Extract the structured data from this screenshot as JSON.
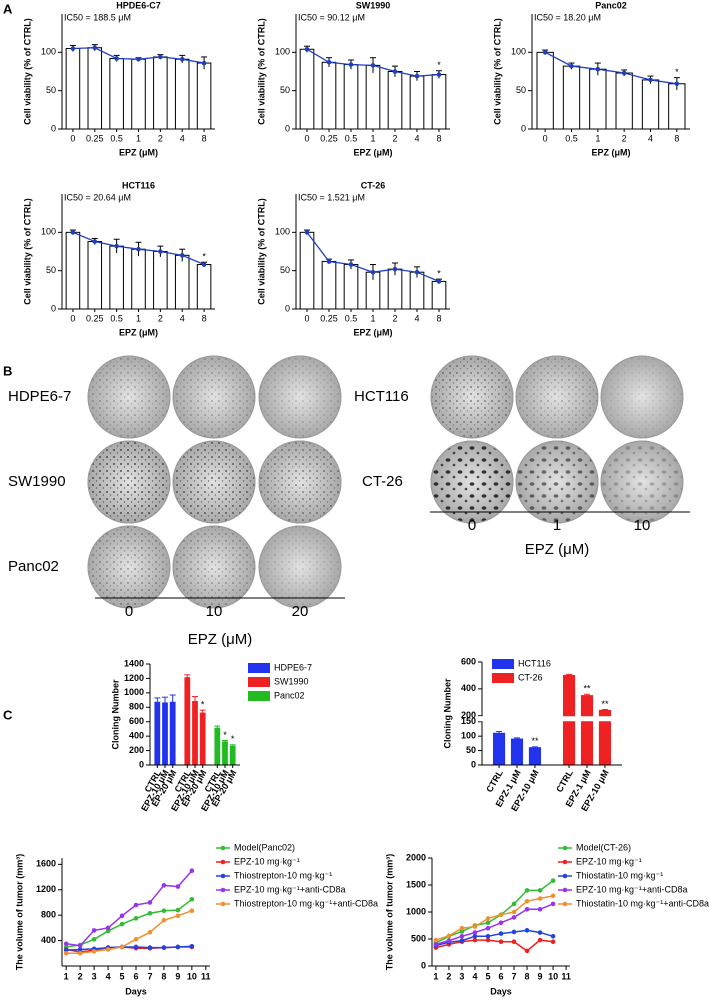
{
  "panel_labels": [
    "A",
    "B",
    "C"
  ],
  "colony_panels": [
    {
      "rows": [
        "HDPE6-7",
        "SW1990",
        "Panc02"
      ],
      "columns": [
        "0",
        "10",
        "20"
      ],
      "x_label": "EPZ (μM)"
    },
    {
      "rows": [
        "HCT116",
        "CT-26"
      ],
      "columns": [
        "0",
        "1",
        "10"
      ],
      "x_label": "EPZ (μM)"
    }
  ],
  "chart_data": [
    {
      "type": "bar",
      "title": "HPDE6-C7",
      "annotation": "IC50 = 188.5 μM",
      "x_label": "EPZ (μM)",
      "y_label": "Cell viability (% of CTRL)",
      "categories": [
        "0",
        "0.25",
        "0.5",
        "1",
        "2",
        "4",
        "8"
      ],
      "values": [
        105,
        106,
        92,
        91,
        94,
        91,
        86
      ],
      "errors": [
        4,
        4,
        4,
        2,
        3,
        5,
        8
      ],
      "significance": [
        null,
        null,
        null,
        null,
        null,
        null,
        null
      ],
      "color": "#ffffff",
      "line_color": "#1f3fbf",
      "ylim": [
        0,
        150
      ],
      "yticks": [
        0,
        50,
        100
      ]
    },
    {
      "type": "bar",
      "title": "SW1990",
      "annotation": "IC50 = 90.12 μM",
      "x_label": "EPZ (μM)",
      "y_label": "Cell viability (% of CTRL)",
      "categories": [
        "0",
        "0.25",
        "0.5",
        "1",
        "2",
        "4",
        "8"
      ],
      "values": [
        104,
        87,
        84,
        83,
        75,
        69,
        71
      ],
      "errors": [
        4,
        6,
        6,
        10,
        7,
        6,
        5
      ],
      "significance": [
        null,
        null,
        null,
        null,
        null,
        null,
        "*"
      ],
      "color": "#ffffff",
      "line_color": "#1f3fbf",
      "ylim": [
        0,
        150
      ],
      "yticks": [
        0,
        50,
        100
      ]
    },
    {
      "type": "bar",
      "title": "Panc02",
      "annotation": "IC50 = 18.20 μM",
      "x_label": "EPZ (μM)",
      "y_label": "Cell viability (% of CTRL)",
      "categories": [
        "0",
        "0.5",
        "1",
        "2",
        "4",
        "8"
      ],
      "values": [
        100,
        82,
        78,
        73,
        64,
        59
      ],
      "errors": [
        3,
        4,
        8,
        4,
        5,
        8
      ],
      "significance": [
        null,
        null,
        null,
        null,
        null,
        "*"
      ],
      "color": "#ffffff",
      "line_color": "#1f3fbf",
      "ylim": [
        0,
        150
      ],
      "yticks": [
        0,
        50,
        100
      ]
    },
    {
      "type": "bar",
      "title": "HCT116",
      "annotation": "IC50 = 20.64 μM",
      "x_label": "EPZ (μM)",
      "y_label": "Cell viability (% of CTRL)",
      "categories": [
        "0",
        "0.25",
        "0.5",
        "1",
        "2",
        "4",
        "8"
      ],
      "values": [
        100,
        88,
        82,
        78,
        75,
        70,
        58
      ],
      "errors": [
        3,
        4,
        9,
        9,
        7,
        8,
        3
      ],
      "significance": [
        null,
        null,
        null,
        null,
        null,
        null,
        "*"
      ],
      "color": "#ffffff",
      "line_color": "#1f3fbf",
      "ylim": [
        0,
        150
      ],
      "yticks": [
        0,
        50,
        100
      ]
    },
    {
      "type": "bar",
      "title": "CT-26",
      "annotation": "IC50 = 1.521 μM",
      "x_label": "EPZ (μM)",
      "y_label": "Cell viability (% of CTRL)",
      "categories": [
        "0",
        "0.25",
        "0.5",
        "1",
        "2",
        "4",
        "8"
      ],
      "values": [
        100,
        62,
        58,
        48,
        52,
        48,
        36
      ],
      "errors": [
        3,
        3,
        6,
        10,
        8,
        7,
        3
      ],
      "significance": [
        null,
        null,
        null,
        null,
        null,
        null,
        "*"
      ],
      "color": "#ffffff",
      "line_color": "#1f3fbf",
      "ylim": [
        0,
        150
      ],
      "yticks": [
        0,
        50,
        100
      ]
    },
    {
      "type": "bar",
      "y_label": "Cloning Number",
      "categories": [
        "CTRL",
        "EPZ-10 μM",
        "EP-20 μM",
        "CTRL",
        "EPZ-10 μM",
        "EP-20 μM",
        "CTRL",
        "EPZ-10 μM",
        "EP-20 μM"
      ],
      "series": [
        {
          "name": "HDPE6-7",
          "color": "#2233ee",
          "values": [
            870,
            860,
            870,
            null,
            null,
            null,
            null,
            null,
            null
          ],
          "errors": [
            60,
            80,
            100,
            null,
            null,
            null,
            null,
            null,
            null
          ],
          "significance": [
            null,
            null,
            null,
            null,
            null,
            null,
            null,
            null,
            null
          ]
        },
        {
          "name": "SW1990",
          "color": "#ee2222",
          "values": [
            null,
            null,
            null,
            1210,
            880,
            720,
            null,
            null,
            null
          ],
          "errors": [
            null,
            null,
            null,
            40,
            70,
            40,
            null,
            null,
            null
          ],
          "significance": [
            null,
            null,
            null,
            null,
            null,
            "*",
            null,
            null,
            null
          ]
        },
        {
          "name": "Panc02",
          "color": "#22bb22",
          "values": [
            null,
            null,
            null,
            null,
            null,
            null,
            510,
            320,
            260
          ],
          "errors": [
            null,
            null,
            null,
            null,
            null,
            null,
            30,
            20,
            20
          ],
          "significance": [
            null,
            null,
            null,
            null,
            null,
            null,
            null,
            "*",
            "*"
          ]
        }
      ],
      "ylim": [
        0,
        1400
      ],
      "yticks": [
        0,
        200,
        400,
        600,
        800,
        1000,
        1200,
        1400
      ]
    },
    {
      "type": "bar",
      "y_label": "Cloning Number",
      "categories": [
        "CTRL",
        "EPZ-1 μM",
        "EPZ-10 μM",
        "CTRL",
        "EPZ-1 μM",
        "EPZ-10 μM"
      ],
      "series": [
        {
          "name": "HCT116",
          "color": "#2233ee",
          "values": [
            110,
            90,
            60,
            null,
            null,
            null
          ],
          "errors": [
            6,
            4,
            3,
            null,
            null,
            null
          ],
          "significance": [
            null,
            null,
            "**",
            null,
            null,
            null
          ]
        },
        {
          "name": "CT-26",
          "color": "#ee2222",
          "values": [
            null,
            null,
            null,
            500,
            350,
            240
          ],
          "errors": [
            null,
            null,
            null,
            8,
            10,
            6
          ],
          "significance": [
            null,
            null,
            null,
            null,
            "**",
            "**"
          ]
        }
      ],
      "ylim": [
        0,
        600
      ],
      "yticks": [
        0,
        50,
        100,
        150,
        200,
        400,
        600
      ],
      "axis_break": [
        150,
        200
      ]
    },
    {
      "type": "line",
      "x_label": "Days",
      "y_label": "The volume of tumor (mm³)",
      "x": [
        1,
        2,
        3,
        4,
        5,
        6,
        7,
        8,
        9,
        10
      ],
      "xlim": [
        0.7,
        11.3
      ],
      "xticks": [
        1,
        2,
        3,
        4,
        5,
        6,
        7,
        8,
        9,
        10,
        11
      ],
      "ylim": [
        0,
        1700
      ],
      "yticks": [
        400,
        800,
        1200,
        1600
      ],
      "series": [
        {
          "name": "Model(Panc02)",
          "color": "#33bb33",
          "values": [
            300,
            330,
            420,
            550,
            660,
            750,
            830,
            870,
            880,
            1050
          ]
        },
        {
          "name": "EPZ-10 mg·kg⁻¹",
          "color": "#ee2222",
          "values": [
            260,
            220,
            250,
            290,
            300,
            280,
            280,
            290,
            300,
            300
          ]
        },
        {
          "name": "Thiostrepton-10 mg·kg⁻¹",
          "color": "#2244dd",
          "values": [
            250,
            260,
            270,
            290,
            300,
            300,
            290,
            290,
            300,
            310
          ]
        },
        {
          "name": "EPZ-10 mg·kg⁻¹+anti-CD8a",
          "color": "#9933ee",
          "values": [
            350,
            320,
            560,
            600,
            790,
            960,
            1000,
            1270,
            1250,
            1500
          ]
        },
        {
          "name": "Thiostrepton-10 mg·kg⁻¹+anti-CD8a",
          "color": "#f09030",
          "values": [
            200,
            200,
            230,
            260,
            300,
            420,
            530,
            720,
            790,
            870
          ]
        }
      ]
    },
    {
      "type": "line",
      "x_label": "Days",
      "y_label": "The volume of tumor (mm³)",
      "x": [
        1,
        2,
        3,
        4,
        5,
        6,
        7,
        8,
        9,
        10
      ],
      "xlim": [
        0.7,
        11.3
      ],
      "xticks": [
        1,
        2,
        3,
        4,
        5,
        6,
        7,
        8,
        9,
        10,
        11
      ],
      "ylim": [
        0,
        2000
      ],
      "yticks": [
        0,
        500,
        1000,
        1500,
        2000
      ],
      "series": [
        {
          "name": "Model(CT-26)",
          "color": "#33bb33",
          "values": [
            430,
            550,
            640,
            750,
            800,
            950,
            1150,
            1400,
            1400,
            1580
          ]
        },
        {
          "name": "EPZ-10 mg·kg⁻¹",
          "color": "#ee2222",
          "values": [
            340,
            400,
            450,
            480,
            480,
            450,
            450,
            280,
            480,
            450
          ]
        },
        {
          "name": "Thiostatin-10 mg·kg⁻¹",
          "color": "#2244dd",
          "values": [
            380,
            440,
            470,
            550,
            550,
            600,
            630,
            660,
            620,
            550
          ]
        },
        {
          "name": "EPZ-10 mg·kg⁻¹+anti-CD8a",
          "color": "#9933ee",
          "values": [
            400,
            470,
            550,
            620,
            700,
            800,
            900,
            1050,
            1050,
            1150
          ]
        },
        {
          "name": "Thiostatin-10 mg·kg⁻¹+anti-CD8a",
          "color": "#f09030",
          "values": [
            480,
            560,
            700,
            730,
            880,
            950,
            1000,
            1200,
            1250,
            1300
          ]
        }
      ]
    }
  ]
}
